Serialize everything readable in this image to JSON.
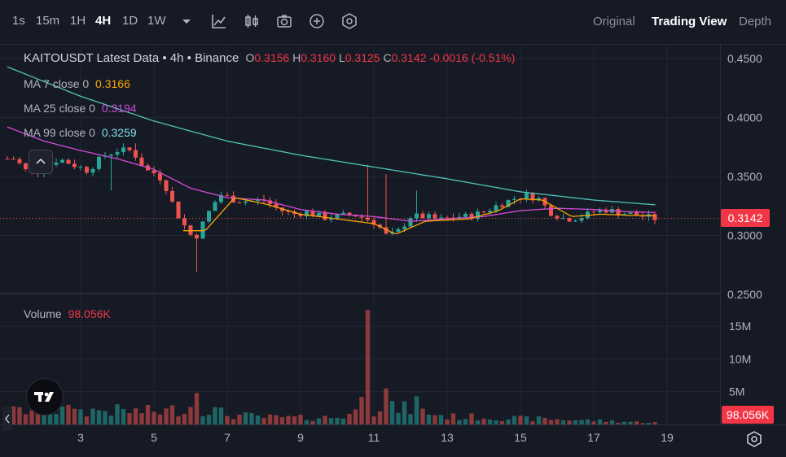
{
  "toolbar": {
    "intervals": [
      "1s",
      "15m",
      "1H",
      "4H",
      "1D",
      "1W"
    ],
    "active_interval": "4H",
    "views": [
      "Original",
      "Trading View",
      "Depth"
    ],
    "active_view": "Trading View"
  },
  "legend": {
    "symbol": "KAITOUSDT Latest Data",
    "interval": "4h",
    "exchange": "Binance",
    "dot": "•",
    "open_label": "O",
    "open": "0.3156",
    "high_label": "H",
    "high": "0.3160",
    "low_label": "L",
    "low": "0.3125",
    "close_label": "C",
    "close": "0.3142",
    "change": "-0.0016 (-0.51%)",
    "ma7_label": "MA 7 close 0",
    "ma7_value": "0.3166",
    "ma25_label": "MA 25 close 0",
    "ma25_value": "0.3194",
    "ma99_label": "MA 99 close 0",
    "ma99_value": "0.3259",
    "volume_label": "Volume",
    "volume_value": "98.056K"
  },
  "price_axis": {
    "ticks": [
      "0.4500",
      "0.4000",
      "0.3500",
      "0.3000",
      "0.2500"
    ]
  },
  "volume_axis": {
    "ticks": [
      "15M",
      "10M",
      "5M"
    ]
  },
  "last_price_tag": "0.3142",
  "last_volume_tag": "98.056K",
  "time_axis": {
    "ticks": [
      "3",
      "5",
      "7",
      "9",
      "11",
      "13",
      "15",
      "17",
      "19"
    ]
  },
  "colors": {
    "up": "#26a69a",
    "down": "#ef5350",
    "ma7": "#f7a600",
    "ma25": "#d44bd9",
    "ma99": "#4fc3b8",
    "background": "#161a25",
    "grid": "#232733"
  },
  "chart_data": {
    "type": "candlestick",
    "x_unit": "day",
    "price_range": [
      0.25,
      0.46
    ],
    "volume_range": [
      0,
      18000000
    ],
    "ohlc_anchors": [
      [
        1.2,
        0.365
      ],
      [
        1.6,
        0.352
      ],
      [
        2.0,
        0.357
      ],
      [
        2.4,
        0.365
      ],
      [
        2.8,
        0.36
      ],
      [
        3.2,
        0.355
      ],
      [
        3.6,
        0.367
      ],
      [
        4.0,
        0.372
      ],
      [
        4.4,
        0.372
      ],
      [
        4.8,
        0.355
      ],
      [
        5.1,
        0.352
      ],
      [
        5.3,
        0.343
      ],
      [
        5.6,
        0.32
      ],
      [
        5.9,
        0.305
      ],
      [
        6.1,
        0.296
      ],
      [
        6.5,
        0.32
      ],
      [
        6.8,
        0.335
      ],
      [
        7.2,
        0.33
      ],
      [
        7.6,
        0.329
      ],
      [
        8.0,
        0.33
      ],
      [
        8.4,
        0.322
      ],
      [
        8.8,
        0.318
      ],
      [
        9.2,
        0.32
      ],
      [
        9.6,
        0.315
      ],
      [
        10.0,
        0.316
      ],
      [
        10.4,
        0.318
      ],
      [
        10.8,
        0.314
      ],
      [
        11.1,
        0.31
      ],
      [
        11.3,
        0.3
      ],
      [
        11.6,
        0.301
      ],
      [
        12.0,
        0.316
      ],
      [
        12.4,
        0.316
      ],
      [
        12.8,
        0.313
      ],
      [
        13.2,
        0.316
      ],
      [
        13.6,
        0.316
      ],
      [
        14.0,
        0.32
      ],
      [
        14.4,
        0.326
      ],
      [
        14.8,
        0.331
      ],
      [
        15.2,
        0.334
      ],
      [
        15.5,
        0.331
      ],
      [
        15.8,
        0.32
      ],
      [
        16.2,
        0.314
      ],
      [
        16.6,
        0.315
      ],
      [
        17.0,
        0.32
      ],
      [
        17.3,
        0.322
      ],
      [
        17.6,
        0.32
      ],
      [
        18.0,
        0.318
      ],
      [
        18.4,
        0.316
      ],
      [
        18.7,
        0.314
      ]
    ],
    "wick_spikes": [
      [
        10.8,
        0.36
      ],
      [
        11.4,
        0.352
      ],
      [
        12.2,
        0.338
      ],
      [
        6.2,
        0.269
      ],
      [
        6.1,
        0.283
      ],
      [
        4.5,
        0.378
      ],
      [
        3.8,
        0.338
      ]
    ],
    "volume_anchors": [
      [
        1.2,
        2.0
      ],
      [
        2.0,
        2.3
      ],
      [
        3.0,
        2.0
      ],
      [
        3.6,
        2.2
      ],
      [
        4.4,
        2.0
      ],
      [
        5.3,
        2.0
      ],
      [
        6.0,
        2.7
      ],
      [
        6.5,
        2.4
      ],
      [
        7.0,
        1.5
      ],
      [
        8.0,
        1.1
      ],
      [
        9.0,
        1.0
      ],
      [
        10.0,
        1.1
      ],
      [
        10.6,
        2.0
      ],
      [
        11.2,
        2.5
      ],
      [
        12.0,
        2.4
      ],
      [
        13.0,
        1.2
      ],
      [
        14.0,
        1.1
      ],
      [
        15.0,
        0.9
      ],
      [
        16.0,
        0.8
      ],
      [
        17.0,
        0.6
      ],
      [
        18.0,
        0.4
      ],
      [
        18.7,
        0.3
      ]
    ],
    "volume_spikes": [
      [
        10.7,
        4.2
      ],
      [
        10.8,
        17.5
      ],
      [
        11.2,
        2.0
      ],
      [
        11.4,
        5.5
      ],
      [
        12.2,
        4.3
      ],
      [
        6.2,
        4.8
      ],
      [
        2.8,
        2.4
      ]
    ],
    "ma7_points": [
      [
        5.8,
        0.304
      ],
      [
        6.4,
        0.304
      ],
      [
        7.2,
        0.332
      ],
      [
        8.0,
        0.327
      ],
      [
        9.0,
        0.318
      ],
      [
        10.0,
        0.314
      ],
      [
        11.0,
        0.31
      ],
      [
        11.6,
        0.301
      ],
      [
        12.4,
        0.312
      ],
      [
        13.6,
        0.314
      ],
      [
        14.4,
        0.321
      ],
      [
        15.0,
        0.331
      ],
      [
        15.6,
        0.33
      ],
      [
        16.4,
        0.316
      ],
      [
        17.2,
        0.318
      ],
      [
        18.0,
        0.317
      ],
      [
        18.7,
        0.3166
      ]
    ],
    "ma25_points": [
      [
        1.0,
        0.392
      ],
      [
        2.0,
        0.38
      ],
      [
        3.0,
        0.372
      ],
      [
        4.0,
        0.365
      ],
      [
        5.0,
        0.356
      ],
      [
        6.0,
        0.34
      ],
      [
        7.0,
        0.332
      ],
      [
        8.0,
        0.33
      ],
      [
        9.0,
        0.322
      ],
      [
        10.0,
        0.318
      ],
      [
        11.0,
        0.316
      ],
      [
        12.0,
        0.312
      ],
      [
        13.0,
        0.314
      ],
      [
        14.0,
        0.316
      ],
      [
        15.0,
        0.321
      ],
      [
        16.0,
        0.323
      ],
      [
        17.0,
        0.322
      ],
      [
        18.0,
        0.32
      ],
      [
        18.7,
        0.3194
      ]
    ],
    "ma99_points": [
      [
        1.0,
        0.443
      ],
      [
        3.0,
        0.418
      ],
      [
        5.0,
        0.397
      ],
      [
        7.0,
        0.38
      ],
      [
        9.0,
        0.368
      ],
      [
        11.0,
        0.358
      ],
      [
        13.0,
        0.348
      ],
      [
        15.0,
        0.337
      ],
      [
        17.0,
        0.33
      ],
      [
        18.7,
        0.3259
      ]
    ]
  }
}
